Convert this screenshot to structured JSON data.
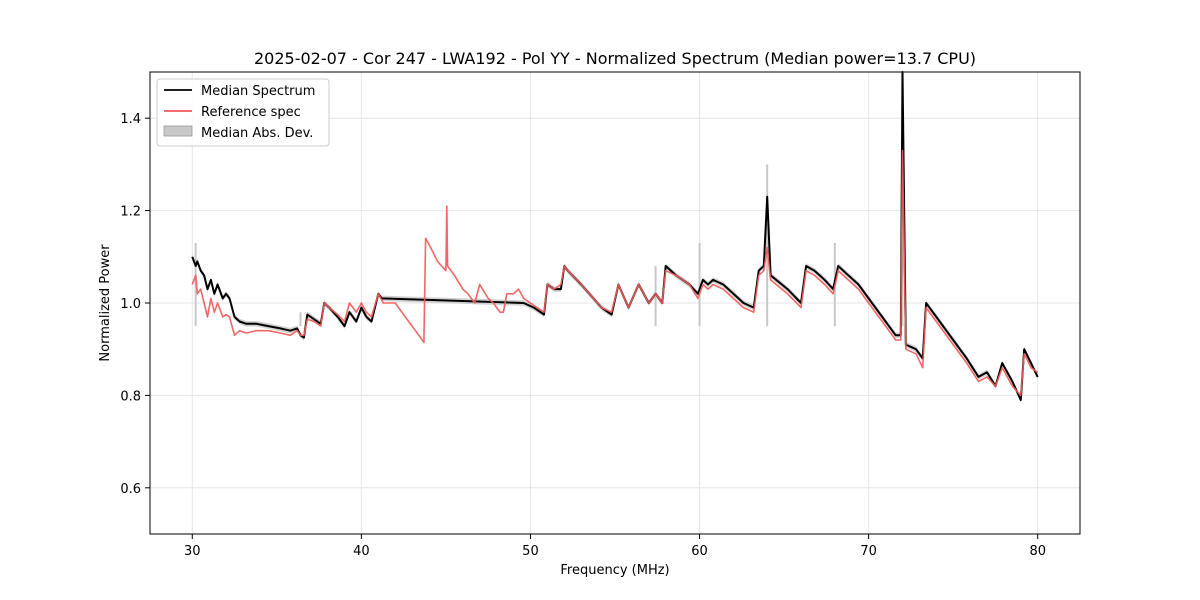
{
  "chart_data": {
    "type": "line",
    "title": "2025-02-07 - Cor 247 - LWA192 - Pol YY - Normalized Spectrum (Median power=13.7 CPU)",
    "xlabel": "Frequency (MHz)",
    "ylabel": "Normalized Power",
    "xlim": [
      27.5,
      82.5
    ],
    "ylim": [
      0.5,
      1.5
    ],
    "xticks": [
      30,
      40,
      50,
      60,
      70,
      80
    ],
    "yticks": [
      0.6,
      0.8,
      1.0,
      1.2,
      1.4
    ],
    "xtick_labels": [
      "30",
      "40",
      "50",
      "60",
      "70",
      "80"
    ],
    "ytick_labels": [
      "0.6",
      "0.8",
      "1.0",
      "1.2",
      "1.4"
    ],
    "grid": true,
    "legend_position": "top-left",
    "colors": {
      "median": "#000000",
      "reference": "#f05a5a",
      "mad": "#c8c8c8"
    },
    "series": [
      {
        "name": "Median Spectrum",
        "x": [
          30.0,
          30.2,
          30.3,
          30.5,
          30.7,
          30.9,
          31.1,
          31.3,
          31.5,
          31.8,
          32.0,
          32.2,
          32.5,
          32.8,
          33.2,
          33.8,
          34.5,
          35.2,
          35.8,
          36.2,
          36.4,
          36.6,
          36.8,
          37.2,
          37.6,
          37.8,
          38.1,
          38.6,
          39.0,
          39.3,
          39.7,
          40.0,
          40.3,
          40.6,
          41.0,
          41.2,
          49.6,
          50.2,
          50.8,
          51.0,
          51.4,
          51.8,
          52.0,
          52.2,
          53.0,
          54.2,
          54.8,
          55.2,
          55.8,
          56.4,
          57.0,
          57.4,
          57.8,
          58.0,
          58.6,
          59.4,
          59.9,
          60.2,
          60.5,
          60.8,
          61.4,
          62.0,
          62.6,
          63.2,
          63.5,
          63.8,
          64.0,
          64.2,
          65.2,
          66.0,
          66.3,
          66.8,
          67.4,
          67.9,
          68.2,
          68.8,
          69.4,
          70.0,
          70.8,
          71.6,
          71.9,
          72.0,
          72.2,
          72.8,
          73.2,
          73.4,
          74.2,
          75.0,
          75.8,
          76.5,
          77.0,
          77.5,
          77.9,
          78.5,
          79.0,
          79.2,
          79.6,
          80.0
        ],
        "y": [
          1.1,
          1.08,
          1.09,
          1.07,
          1.06,
          1.03,
          1.05,
          1.02,
          1.04,
          1.01,
          1.02,
          1.01,
          0.97,
          0.96,
          0.955,
          0.955,
          0.95,
          0.945,
          0.94,
          0.945,
          0.93,
          0.925,
          0.975,
          0.965,
          0.955,
          1.0,
          0.99,
          0.97,
          0.95,
          0.98,
          0.96,
          0.99,
          0.97,
          0.96,
          1.02,
          1.01,
          1.0,
          0.99,
          0.975,
          1.04,
          1.03,
          1.03,
          1.08,
          1.07,
          1.04,
          0.99,
          0.975,
          1.04,
          0.99,
          1.04,
          1.0,
          1.02,
          1.0,
          1.08,
          1.06,
          1.04,
          1.02,
          1.05,
          1.04,
          1.05,
          1.04,
          1.02,
          1.0,
          0.99,
          1.07,
          1.08,
          1.23,
          1.06,
          1.03,
          1.0,
          1.08,
          1.07,
          1.05,
          1.03,
          1.08,
          1.06,
          1.04,
          1.01,
          0.97,
          0.93,
          0.93,
          1.5,
          0.91,
          0.9,
          0.88,
          1.0,
          0.96,
          0.92,
          0.88,
          0.84,
          0.85,
          0.82,
          0.87,
          0.83,
          0.79,
          0.9,
          0.87,
          0.84
        ]
      },
      {
        "name": "Reference spec",
        "x": [
          30.0,
          30.2,
          30.3,
          30.5,
          30.7,
          30.9,
          31.1,
          31.3,
          31.5,
          31.8,
          32.0,
          32.2,
          32.5,
          32.8,
          33.2,
          33.8,
          34.5,
          35.2,
          35.8,
          36.2,
          36.4,
          36.6,
          36.8,
          37.2,
          37.6,
          37.8,
          38.1,
          38.6,
          39.0,
          39.3,
          39.7,
          40.0,
          40.3,
          40.6,
          41.0,
          41.3,
          41.6,
          42.0,
          42.4,
          42.8,
          43.2,
          43.7,
          43.8,
          44.1,
          44.5,
          45.0,
          45.05,
          45.1,
          45.5,
          46.0,
          46.3,
          46.7,
          47.0,
          47.5,
          47.8,
          48.2,
          48.4,
          48.6,
          49.0,
          49.3,
          49.6,
          50.2,
          50.8,
          51.0,
          51.4,
          51.8,
          52.0,
          52.2,
          53.0,
          54.2,
          54.8,
          55.2,
          55.8,
          56.4,
          57.0,
          57.4,
          57.8,
          58.0,
          58.6,
          59.4,
          59.9,
          60.2,
          60.5,
          60.8,
          61.4,
          62.0,
          62.6,
          63.2,
          63.5,
          63.8,
          64.0,
          64.2,
          65.2,
          66.0,
          66.3,
          66.8,
          67.4,
          67.9,
          68.2,
          68.8,
          69.4,
          70.0,
          70.8,
          71.6,
          71.9,
          72.0,
          72.2,
          72.8,
          73.2,
          73.4,
          74.2,
          75.0,
          75.8,
          76.5,
          77.0,
          77.5,
          77.9,
          78.5,
          79.0,
          79.2,
          79.6,
          80.0
        ],
        "y": [
          1.04,
          1.06,
          1.02,
          1.03,
          1.0,
          0.97,
          1.01,
          0.98,
          1.0,
          0.97,
          0.975,
          0.97,
          0.93,
          0.94,
          0.935,
          0.94,
          0.94,
          0.935,
          0.93,
          0.94,
          0.93,
          0.93,
          0.965,
          0.96,
          0.95,
          1.0,
          0.99,
          0.975,
          0.96,
          1.0,
          0.98,
          1.0,
          0.98,
          0.97,
          1.02,
          1.0,
          1.0,
          1.0,
          0.98,
          0.96,
          0.94,
          0.915,
          1.14,
          1.12,
          1.09,
          1.07,
          1.21,
          1.08,
          1.06,
          1.03,
          1.02,
          1.0,
          1.04,
          1.01,
          1.0,
          0.98,
          0.98,
          1.02,
          1.02,
          1.03,
          1.01,
          0.995,
          0.98,
          1.04,
          1.03,
          1.04,
          1.08,
          1.07,
          1.04,
          0.99,
          0.98,
          1.04,
          0.99,
          1.04,
          1.0,
          1.02,
          1.0,
          1.07,
          1.06,
          1.04,
          1.01,
          1.04,
          1.03,
          1.04,
          1.03,
          1.01,
          0.99,
          0.98,
          1.06,
          1.07,
          1.12,
          1.05,
          1.02,
          0.99,
          1.07,
          1.06,
          1.04,
          1.02,
          1.07,
          1.05,
          1.03,
          1.0,
          0.96,
          0.92,
          0.92,
          1.33,
          0.9,
          0.89,
          0.86,
          0.99,
          0.95,
          0.91,
          0.87,
          0.83,
          0.84,
          0.82,
          0.86,
          0.82,
          0.8,
          0.89,
          0.86,
          0.85
        ]
      },
      {
        "name": "Median Abs. Dev.",
        "spike_x": [
          30.2,
          36.4,
          57.4,
          60.0,
          64.0,
          68.0,
          72.0
        ],
        "spike_y": [
          1.13,
          0.98,
          1.08,
          1.13,
          1.3,
          1.13,
          1.5
        ]
      }
    ]
  }
}
